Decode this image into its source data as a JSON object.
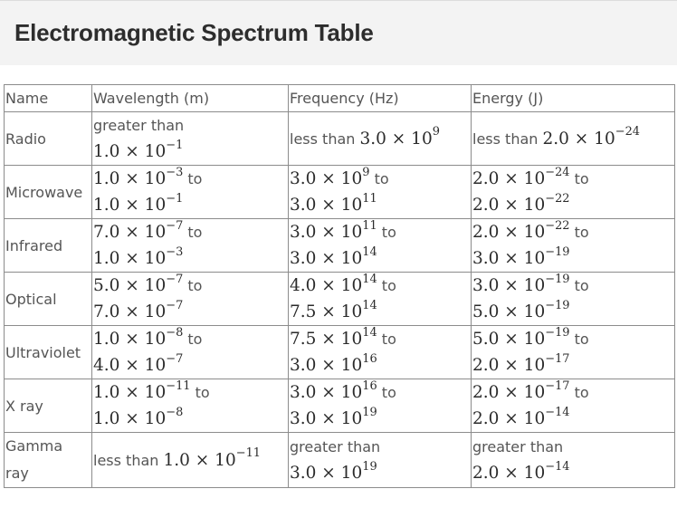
{
  "page": {
    "title": "Electromagnetic Spectrum Table"
  },
  "table": {
    "headers": [
      "Name",
      "Wavelength (m)",
      "Frequency (Hz)",
      "Energy (J)"
    ],
    "rows": [
      {
        "name": "Radio",
        "wavelength": {
          "prefix": "greater than",
          "value": [
            "1.0 × 10",
            "−1"
          ],
          "to": null
        },
        "frequency": {
          "prefix": "less than",
          "value": [
            "3.0 × 10",
            "9"
          ],
          "to": null
        },
        "energy": {
          "prefix": "less than",
          "value": [
            "2.0 × 10",
            "−24"
          ],
          "to": null
        }
      },
      {
        "name": "Microwave",
        "wavelength": {
          "from": [
            "1.0 × 10",
            "−3"
          ],
          "to": [
            "1.0 × 10",
            "−1"
          ]
        },
        "frequency": {
          "from": [
            "3.0 × 10",
            "9"
          ],
          "to": [
            "3.0 × 10",
            "11"
          ]
        },
        "energy": {
          "from": [
            "2.0 × 10",
            "−24"
          ],
          "to": [
            "2.0 × 10",
            "−22"
          ]
        }
      },
      {
        "name": "Infrared",
        "wavelength": {
          "from": [
            "7.0 × 10",
            "−7"
          ],
          "to": [
            "1.0 × 10",
            "−3"
          ]
        },
        "frequency": {
          "from": [
            "3.0 × 10",
            "11"
          ],
          "to": [
            "3.0 × 10",
            "14"
          ]
        },
        "energy": {
          "from": [
            "2.0 × 10",
            "−22"
          ],
          "to": [
            "3.0 × 10",
            "−19"
          ]
        }
      },
      {
        "name": "Optical",
        "wavelength": {
          "from": [
            "5.0 × 10",
            "−7"
          ],
          "to": [
            "7.0 × 10",
            "−7"
          ]
        },
        "frequency": {
          "from": [
            "4.0 × 10",
            "14"
          ],
          "to": [
            "7.5 × 10",
            "14"
          ]
        },
        "energy": {
          "from": [
            "3.0 × 10",
            "−19"
          ],
          "to": [
            "5.0 × 10",
            "−19"
          ]
        }
      },
      {
        "name": "Ultraviolet",
        "wavelength": {
          "from": [
            "1.0 × 10",
            "−8"
          ],
          "to": [
            "4.0 × 10",
            "−7"
          ]
        },
        "frequency": {
          "from": [
            "7.5 × 10",
            "14"
          ],
          "to": [
            "3.0 × 10",
            "16"
          ]
        },
        "energy": {
          "from": [
            "5.0 × 10",
            "−19"
          ],
          "to": [
            "2.0 × 10",
            "−17"
          ]
        }
      },
      {
        "name": "X ray",
        "wavelength": {
          "from": [
            "1.0 × 10",
            "−11"
          ],
          "to": [
            "1.0 × 10",
            "−8"
          ]
        },
        "frequency": {
          "from": [
            "3.0 × 10",
            "16"
          ],
          "to": [
            "3.0 × 10",
            "19"
          ]
        },
        "energy": {
          "from": [
            "2.0 × 10",
            "−17"
          ],
          "to": [
            "2.0 × 10",
            "−14"
          ]
        }
      },
      {
        "name": "Gamma ray",
        "wavelength": {
          "prefix": "less than",
          "value": [
            "1.0 × 10",
            "−11"
          ],
          "to": null
        },
        "frequency": {
          "prefix": "greater than",
          "value": [
            "3.0 × 10",
            "19"
          ],
          "to": null,
          "split": true
        },
        "energy": {
          "prefix": "greater than",
          "value": [
            "2.0 × 10",
            "−14"
          ],
          "to": null,
          "split": true
        }
      }
    ],
    "to_word": "to"
  }
}
